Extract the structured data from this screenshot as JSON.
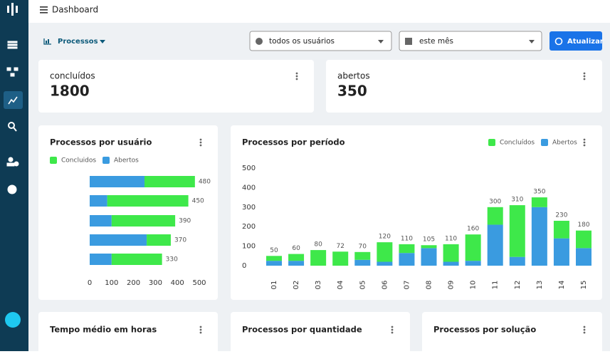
{
  "header": {
    "title": "Dashboard"
  },
  "toolbar": {
    "menu": "Processos",
    "user_filter": "todos os usuários",
    "period_filter": "este mês",
    "refresh": "Atualizar"
  },
  "stats": [
    {
      "label": "concluídos",
      "value": 1800
    },
    {
      "label": "abertos",
      "value": 350
    }
  ],
  "chart_data": [
    {
      "type": "hbar",
      "title": "Processos por usuário",
      "stacked": true,
      "categories": [
        null,
        null,
        null,
        null,
        null
      ],
      "series": [
        {
          "name": "Concluidos",
          "color": "#3ee84a",
          "values": [
            230,
            370,
            290,
            110,
            230
          ]
        },
        {
          "name": "Abertos",
          "color": "#3a9be0",
          "values": [
            250,
            80,
            100,
            260,
            100
          ]
        }
      ],
      "totals": [
        480,
        450,
        390,
        370,
        330
      ],
      "xlim": [
        0,
        500
      ],
      "xticks": [
        0,
        100,
        200,
        300,
        400,
        500
      ]
    },
    {
      "type": "bar",
      "title": "Processos por período",
      "stacked": true,
      "legend": "top-right",
      "categories": [
        "01",
        "02",
        "03",
        "04",
        "05",
        "06",
        "07",
        "08",
        "09",
        "10",
        "11",
        "12",
        "13",
        "14",
        "15"
      ],
      "series": [
        {
          "name": "Concluídos",
          "color": "#3ee84a",
          "values": [
            25,
            35,
            80,
            72,
            40,
            100,
            45,
            15,
            90,
            135,
            90,
            265,
            50,
            90,
            90
          ]
        },
        {
          "name": "Abertos",
          "color": "#3a9be0",
          "values": [
            25,
            25,
            0,
            0,
            30,
            20,
            65,
            90,
            20,
            25,
            210,
            45,
            300,
            140,
            90
          ]
        }
      ],
      "totals": [
        50,
        60,
        80,
        72,
        70,
        120,
        110,
        105,
        110,
        160,
        300,
        310,
        350,
        230,
        180
      ],
      "ylim": [
        0,
        500
      ],
      "yticks": [
        0,
        100,
        200,
        300,
        400,
        500
      ]
    }
  ],
  "cards": [
    "Tempo médio em horas",
    "Processos por quantidade",
    "Processos por solução"
  ]
}
